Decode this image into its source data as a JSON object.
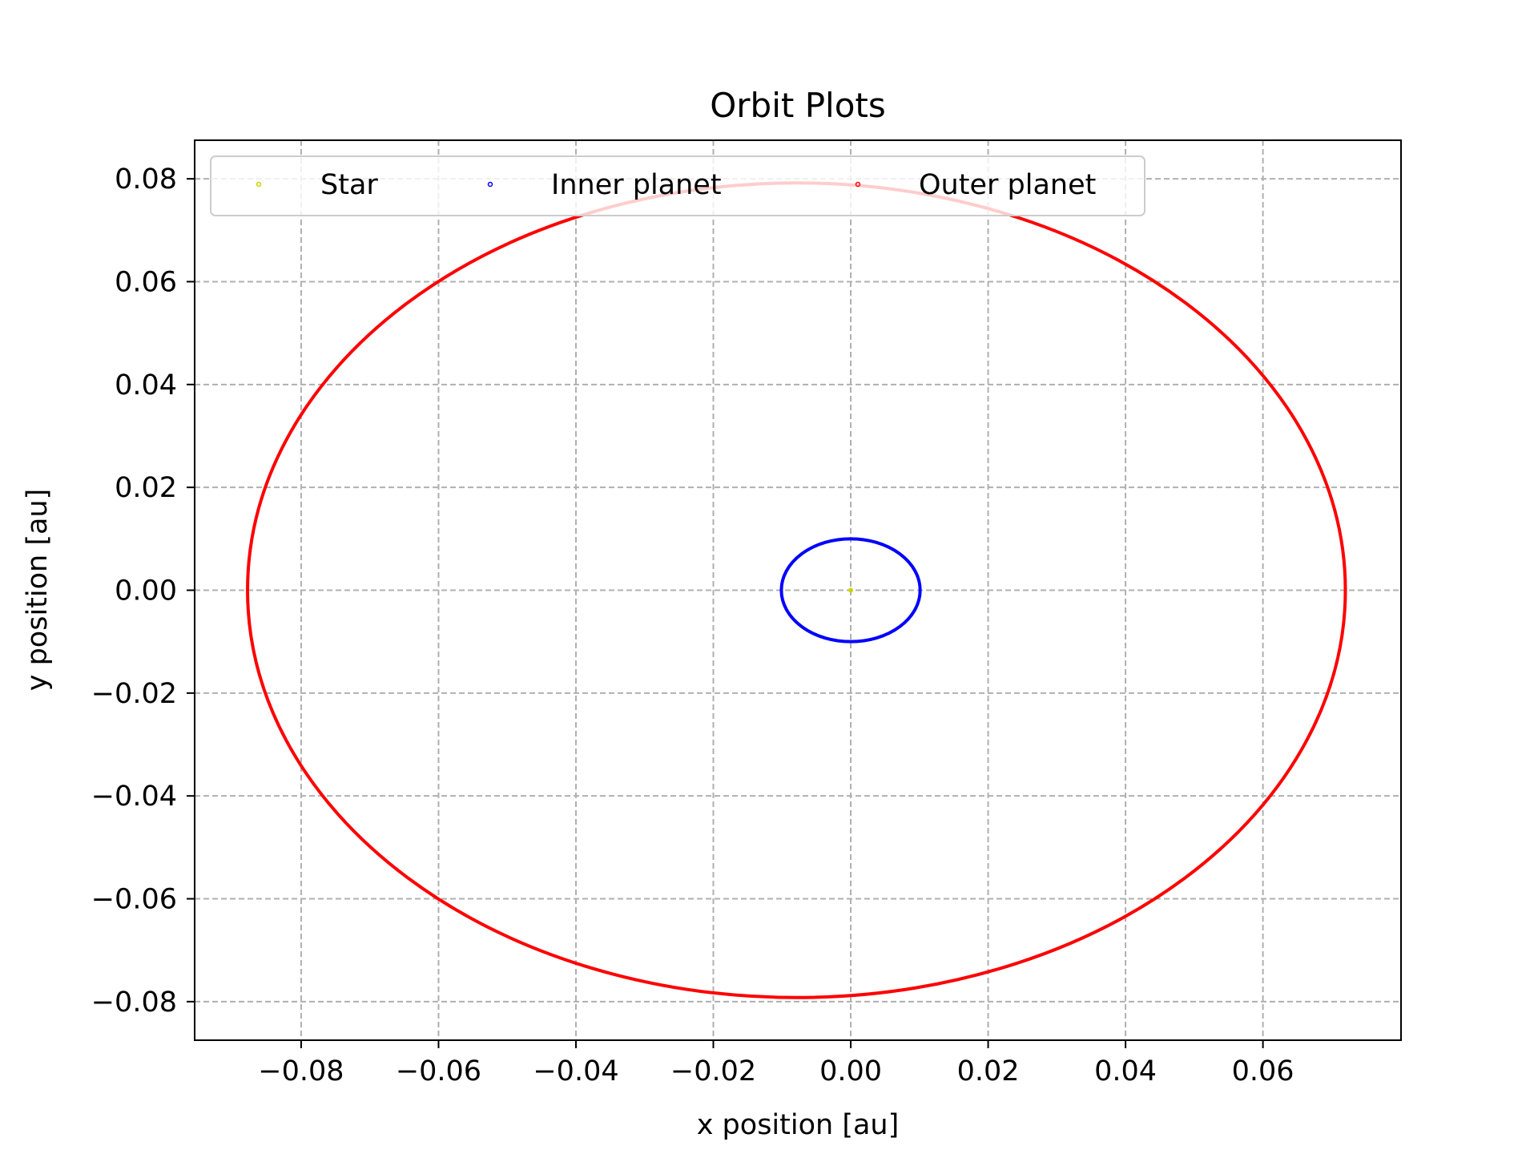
{
  "chart_data": {
    "type": "line",
    "title": "Orbit Plots",
    "xlabel": "x position [au]",
    "ylabel": "y position [au]",
    "xlim": [
      -0.0955,
      0.0801
    ],
    "ylim": [
      -0.0875,
      0.0875
    ],
    "xticks": [
      -0.08,
      -0.06,
      -0.04,
      -0.02,
      0.0,
      0.02,
      0.04,
      0.06
    ],
    "yticks": [
      -0.08,
      -0.06,
      -0.04,
      -0.02,
      0.0,
      0.02,
      0.04,
      0.06,
      0.08
    ],
    "xtick_labels": [
      "−0.08",
      "−0.06",
      "−0.04",
      "−0.02",
      "0.00",
      "0.02",
      "0.04",
      "0.06"
    ],
    "ytick_labels": [
      "−0.08",
      "−0.06",
      "−0.04",
      "−0.02",
      "0.00",
      "0.02",
      "0.04",
      "0.06",
      "0.08"
    ],
    "grid": true,
    "grid_style": "dashed",
    "legend_position": "top",
    "series": [
      {
        "name": "Star",
        "color": "#c8d400",
        "orbit": {
          "center_x": 0.0,
          "center_y": 0.0,
          "semi_major_x": 0.0002,
          "semi_minor_y": 0.0001
        }
      },
      {
        "name": "Inner planet",
        "color": "#0000ff",
        "orbit": {
          "center_x": 0.0,
          "center_y": 0.0,
          "semi_major_x": 0.0101,
          "semi_minor_y": 0.01
        }
      },
      {
        "name": "Outer planet",
        "color": "#ff0000",
        "orbit": {
          "center_x": -0.0079,
          "center_y": 0.0,
          "semi_major_x": 0.0799,
          "semi_minor_y": 0.0792
        },
        "points_sampled": [
          [
            -0.0878,
            0.0
          ],
          [
            -0.0079,
            0.0792
          ],
          [
            0.072,
            0.0
          ],
          [
            -0.0079,
            -0.0792
          ],
          [
            -0.0645,
            0.0557
          ],
          [
            0.0486,
            0.0557
          ],
          [
            -0.0645,
            -0.0557
          ],
          [
            0.0486,
            -0.0557
          ]
        ]
      }
    ]
  }
}
